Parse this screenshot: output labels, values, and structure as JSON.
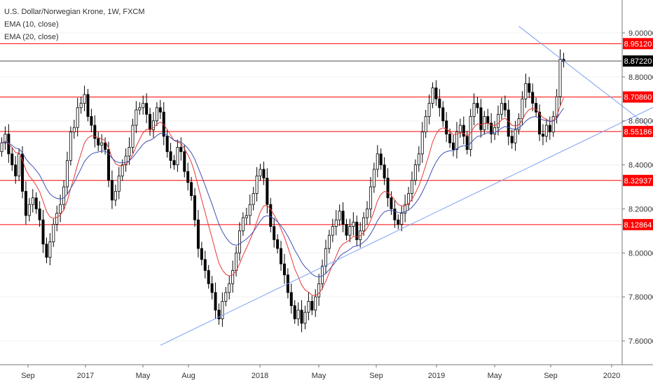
{
  "chart_title": "U.S. Dollar/Norwegian Krone, 1W, FXCM",
  "indicators": [
    "EMA (10, close)",
    "EMA (20, close)"
  ],
  "colors": {
    "up_candle": "#ffffff",
    "down_candle": "#000000",
    "candle_outline": "#000000",
    "ema10": "#e53935",
    "ema20": "#3f51b5",
    "support_resistance": "#ff0000",
    "trendline": "#7b9ff0",
    "current_price_line": "#000000",
    "label_bg": "#ff0000",
    "label_text": "#ffffff"
  },
  "chart_data": {
    "type": "candlestick",
    "title": "U.S. Dollar/Norwegian Krone, 1W, FXCM",
    "ylim": [
      7.52,
      9.04
    ],
    "y_ticks": [
      "9.00000",
      "8.80000",
      "8.60000",
      "8.40000",
      "8.20000",
      "8.00000",
      "7.80000",
      "7.60000"
    ],
    "x_ticks": [
      "Sep",
      "2017",
      "May",
      "Aug",
      "2018",
      "May",
      "Sep",
      "2019",
      "May",
      "Sep",
      "2020"
    ],
    "horizontal_levels": [
      {
        "label": "8.95120",
        "value": 8.9512
      },
      {
        "label": "8.70860",
        "value": 8.7086
      },
      {
        "label": "8.55186",
        "value": 8.55186
      },
      {
        "label": "8.32937",
        "value": 8.32937
      },
      {
        "label": "8.12864",
        "value": 8.12864
      }
    ],
    "current_price": {
      "label": "8.87220",
      "value": 8.8722
    },
    "trendlines": [
      {
        "name": "rising-support",
        "from": [
          46,
          7.58
        ],
        "to": [
          198,
          8.73
        ]
      },
      {
        "name": "falling-resistance",
        "from": [
          150,
          9.03
        ],
        "to": [
          198,
          8.45
        ]
      }
    ],
    "series_close": [
      8.5,
      8.54,
      8.45,
      8.4,
      8.35,
      8.45,
      8.28,
      8.17,
      8.22,
      8.25,
      8.2,
      8.15,
      8.04,
      7.98,
      8.05,
      8.13,
      8.18,
      8.22,
      8.3,
      8.42,
      8.55,
      8.57,
      8.66,
      8.68,
      8.72,
      8.62,
      8.58,
      8.52,
      8.49,
      8.5,
      8.47,
      8.33,
      8.24,
      8.28,
      8.35,
      8.4,
      8.44,
      8.48,
      8.58,
      8.65,
      8.66,
      8.68,
      8.63,
      8.56,
      8.6,
      8.66,
      8.64,
      8.53,
      8.46,
      8.42,
      8.4,
      8.48,
      8.46,
      8.37,
      8.32,
      8.26,
      8.15,
      8.02,
      7.97,
      7.92,
      7.86,
      7.82,
      7.74,
      7.7,
      7.78,
      7.82,
      7.86,
      7.92,
      8.0,
      8.1,
      8.16,
      8.17,
      8.22,
      8.27,
      8.35,
      8.38,
      8.34,
      8.22,
      8.12,
      8.06,
      8.02,
      7.95,
      7.9,
      7.82,
      7.76,
      7.7,
      7.74,
      7.68,
      7.73,
      7.78,
      7.74,
      7.8,
      7.86,
      7.94,
      8.02,
      8.08,
      8.12,
      8.15,
      8.19,
      8.13,
      8.08,
      8.12,
      8.14,
      8.06,
      8.1,
      8.16,
      8.2,
      8.3,
      8.38,
      8.45,
      8.4,
      8.34,
      8.25,
      8.2,
      8.15,
      8.13,
      8.18,
      8.22,
      8.27,
      8.33,
      8.4,
      8.45,
      8.55,
      8.62,
      8.68,
      8.75,
      8.7,
      8.66,
      8.6,
      8.54,
      8.5,
      8.47,
      8.55,
      8.58,
      8.53,
      8.47,
      8.62,
      8.68,
      8.66,
      8.56,
      8.62,
      8.59,
      8.54,
      8.57,
      8.63,
      8.68,
      8.65,
      8.53,
      8.5,
      8.56,
      8.61,
      8.7,
      8.77,
      8.73,
      8.68,
      8.64,
      8.54,
      8.53,
      8.58,
      8.55,
      8.62,
      8.71,
      8.88,
      8.87
    ]
  }
}
